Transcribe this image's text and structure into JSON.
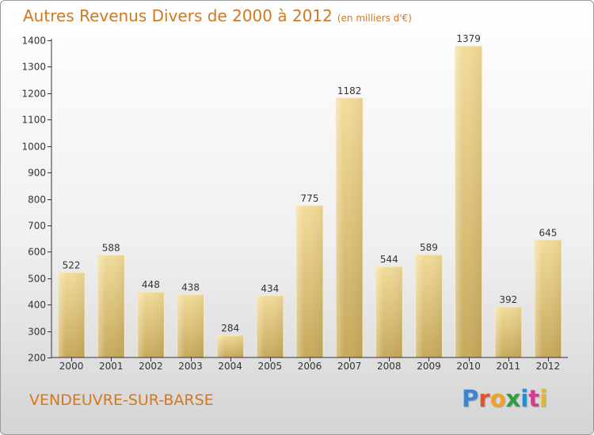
{
  "chart_data": {
    "type": "bar",
    "title": "Autres Revenus Divers de 2000 à 2012",
    "subtitle": "(en milliers d'€)",
    "categories": [
      "2000",
      "2001",
      "2002",
      "2003",
      "2004",
      "2005",
      "2006",
      "2007",
      "2008",
      "2009",
      "2010",
      "2011",
      "2012"
    ],
    "values": [
      522,
      588,
      448,
      438,
      284,
      434,
      775,
      1182,
      544,
      589,
      1379,
      392,
      645
    ],
    "ylim": [
      200,
      1400
    ],
    "yticks": [
      200,
      300,
      400,
      500,
      600,
      700,
      800,
      900,
      1000,
      1100,
      1200,
      1300,
      1400
    ],
    "grid": false,
    "legend": "none",
    "bar_color": "#e9cf86"
  },
  "footer": {
    "location": "VENDEUVRE-SUR-BARSE"
  },
  "brand": {
    "logo_text": "Proxiti",
    "letter_colors": [
      "#3a86d1",
      "#e8522a",
      "#f0a12a",
      "#2e9e3e",
      "#1e8fd6",
      "#d43f8b",
      "#e8b52a"
    ]
  }
}
